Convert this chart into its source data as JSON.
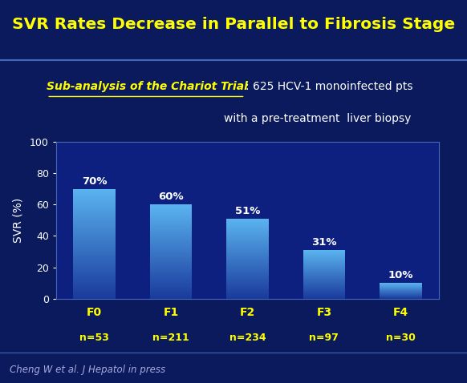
{
  "title": "SVR Rates Decrease in Parallel to Fibrosis Stage",
  "subtitle_bold": "Sub-analysis of the Chariot Trial",
  "subtitle_rest_line1": ": 625 HCV-1 monoinfected pts",
  "subtitle_rest_line2": "with a pre-treatment  liver biopsy",
  "footnote": "Cheng W et al. J Hepatol in press",
  "cat_labels_top": [
    "F0",
    "F1",
    "F2",
    "F3",
    "F4"
  ],
  "cat_labels_bot": [
    "n=53",
    "n=211",
    "n=234",
    "n=97",
    "n=30"
  ],
  "values": [
    70,
    60,
    51,
    31,
    10
  ],
  "value_labels": [
    "70%",
    "60%",
    "51%",
    "31%",
    "10%"
  ],
  "ylabel": "SVR (%)",
  "ylim": [
    0,
    100
  ],
  "yticks": [
    0,
    20,
    40,
    60,
    80,
    100
  ],
  "bg_color": "#0a1a5c",
  "title_color": "#ffff00",
  "axis_bg_color": "#0d2080",
  "bar_color_top": "#5ab4f0",
  "bar_color_bottom": "#1a3a9c",
  "tick_label_color": "#ffff00",
  "value_label_color": "#ffffff",
  "ylabel_color": "#ffffff",
  "ytick_color": "#ffffff",
  "footnote_color": "#aaaadd",
  "subtitle_color": "#ffffff",
  "subtitle_bold_color": "#ffff00",
  "separator_color": "#4466bb",
  "footer_bg_color": "#061040"
}
